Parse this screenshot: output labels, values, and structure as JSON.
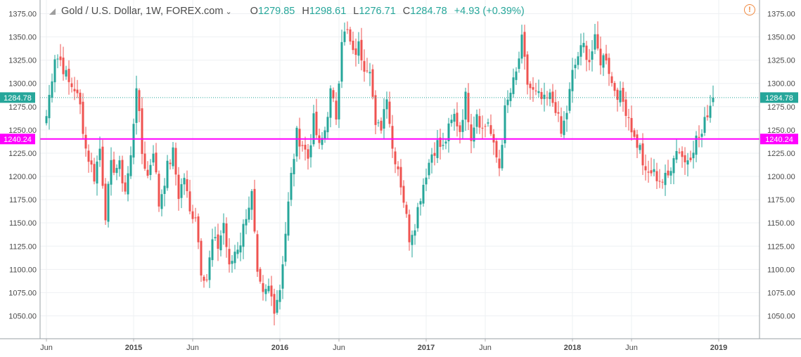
{
  "legend": {
    "symbol": "Gold / U.S. Dollar, 1W, FOREX.com",
    "caret": "⌄",
    "open_key": "O",
    "open": "1279.85",
    "high_key": "H",
    "high": "1298.61",
    "low_key": "L",
    "low": "1276.71",
    "close_key": "C",
    "close": "1284.78",
    "change": "+4.93 (+0.39%)"
  },
  "warning_icon": "!",
  "colors": {
    "up": "#26a69a",
    "down": "#ef5350",
    "horizontal_line": "#ff00ff",
    "price_line": "#26a69a"
  },
  "chart_data": {
    "type": "candlestick",
    "y_ticks": [
      "1375.00",
      "1350.00",
      "1325.00",
      "1300.00",
      "1275.00",
      "1250.00",
      "1225.00",
      "1200.00",
      "1175.00",
      "1150.00",
      "1125.00",
      "1100.00",
      "1075.00",
      "1050.00"
    ],
    "ylim": [
      1037,
      1386
    ],
    "x_ticks": [
      {
        "label": "Jun",
        "week": 0
      },
      {
        "label": "2015",
        "week": 31
      },
      {
        "label": "Jun",
        "week": 52
      },
      {
        "label": "2016",
        "week": 83
      },
      {
        "label": "Jun",
        "week": 104
      },
      {
        "label": "2017",
        "week": 135
      },
      {
        "label": "Jun",
        "week": 156
      },
      {
        "label": "2018",
        "week": 187
      },
      {
        "label": "Jun",
        "week": 208
      },
      {
        "label": "2019",
        "week": 239
      }
    ],
    "price_label": "1284.78",
    "current_price": 1284.78,
    "horizontal_line_label": "1240.24",
    "horizontal_line": 1240.24,
    "grid": true,
    "close_path": [
      [
        0,
        1265
      ],
      [
        3,
        1330
      ],
      [
        5,
        1325
      ],
      [
        8,
        1300
      ],
      [
        10,
        1295
      ],
      [
        12,
        1275
      ],
      [
        14,
        1230
      ],
      [
        17,
        1200
      ],
      [
        19,
        1230
      ],
      [
        21,
        1160
      ],
      [
        23,
        1210
      ],
      [
        26,
        1210
      ],
      [
        28,
        1185
      ],
      [
        30,
        1220
      ],
      [
        32,
        1300
      ],
      [
        34,
        1225
      ],
      [
        36,
        1200
      ],
      [
        38,
        1230
      ],
      [
        40,
        1170
      ],
      [
        43,
        1210
      ],
      [
        45,
        1225
      ],
      [
        47,
        1180
      ],
      [
        49,
        1200
      ],
      [
        51,
        1160
      ],
      [
        53,
        1160
      ],
      [
        55,
        1100
      ],
      [
        57,
        1090
      ],
      [
        59,
        1130
      ],
      [
        61,
        1125
      ],
      [
        63,
        1150
      ],
      [
        65,
        1100
      ],
      [
        67,
        1120
      ],
      [
        69,
        1130
      ],
      [
        71,
        1160
      ],
      [
        73,
        1180
      ],
      [
        75,
        1090
      ],
      [
        77,
        1070
      ],
      [
        79,
        1080
      ],
      [
        81,
        1060
      ],
      [
        83,
        1080
      ],
      [
        85,
        1140
      ],
      [
        87,
        1200
      ],
      [
        89,
        1245
      ],
      [
        91,
        1235
      ],
      [
        93,
        1220
      ],
      [
        95,
        1260
      ],
      [
        97,
        1230
      ],
      [
        99,
        1250
      ],
      [
        101,
        1290
      ],
      [
        103,
        1265
      ],
      [
        105,
        1350
      ],
      [
        107,
        1355
      ],
      [
        109,
        1330
      ],
      [
        111,
        1340
      ],
      [
        113,
        1320
      ],
      [
        115,
        1320
      ],
      [
        117,
        1250
      ],
      [
        119,
        1255
      ],
      [
        121,
        1290
      ],
      [
        123,
        1230
      ],
      [
        125,
        1210
      ],
      [
        127,
        1175
      ],
      [
        129,
        1135
      ],
      [
        131,
        1150
      ],
      [
        133,
        1180
      ],
      [
        135,
        1205
      ],
      [
        137,
        1225
      ],
      [
        139,
        1235
      ],
      [
        141,
        1230
      ],
      [
        143,
        1250
      ],
      [
        145,
        1265
      ],
      [
        147,
        1250
      ],
      [
        149,
        1285
      ],
      [
        151,
        1245
      ],
      [
        153,
        1270
      ],
      [
        155,
        1250
      ],
      [
        157,
        1260
      ],
      [
        159,
        1230
      ],
      [
        161,
        1210
      ],
      [
        163,
        1270
      ],
      [
        165,
        1290
      ],
      [
        167,
        1310
      ],
      [
        169,
        1345
      ],
      [
        171,
        1300
      ],
      [
        173,
        1290
      ],
      [
        175,
        1285
      ],
      [
        177,
        1280
      ],
      [
        179,
        1285
      ],
      [
        181,
        1275
      ],
      [
        183,
        1245
      ],
      [
        185,
        1270
      ],
      [
        187,
        1310
      ],
      [
        189,
        1330
      ],
      [
        191,
        1340
      ],
      [
        193,
        1325
      ],
      [
        195,
        1345
      ],
      [
        197,
        1325
      ],
      [
        199,
        1330
      ],
      [
        201,
        1300
      ],
      [
        203,
        1290
      ],
      [
        205,
        1280
      ],
      [
        207,
        1265
      ],
      [
        209,
        1240
      ],
      [
        211,
        1230
      ],
      [
        213,
        1200
      ],
      [
        215,
        1205
      ],
      [
        217,
        1200
      ],
      [
        219,
        1195
      ],
      [
        221,
        1200
      ],
      [
        223,
        1225
      ],
      [
        225,
        1230
      ],
      [
        227,
        1215
      ],
      [
        229,
        1225
      ],
      [
        231,
        1240
      ],
      [
        233,
        1245
      ],
      [
        235,
        1270
      ],
      [
        237,
        1285
      ]
    ]
  }
}
